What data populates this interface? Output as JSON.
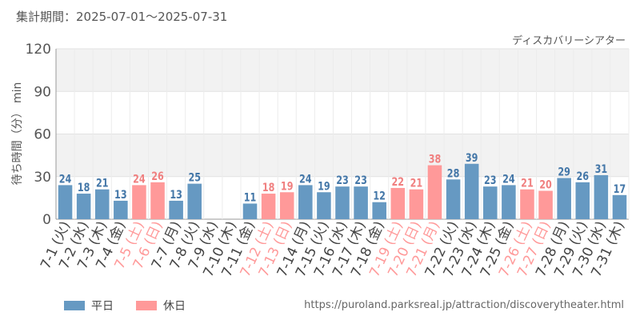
{
  "header": {
    "period_label": "集計期間：2025-07-01～2025-07-31",
    "attraction_name": "ディスカバリーシアター"
  },
  "footer": {
    "source_url": "https://puroland.parksreal.jp/attraction/discoverytheater.html"
  },
  "colors": {
    "weekday": "#6699c2",
    "holiday": "#ff9999",
    "weekday_text": "#4477a8",
    "holiday_text": "#f08080",
    "band": "#f2f2f2"
  },
  "chart_data": {
    "type": "bar",
    "ylabel": "待ち時間（分） min",
    "ylim": [
      0,
      120
    ],
    "yticks": [
      0,
      30,
      60,
      90,
      120
    ],
    "grid": true,
    "legend_position": "bottom-left",
    "categories": [
      "7-1 (火)",
      "7-2 (水)",
      "7-3 (木)",
      "7-4 (金)",
      "7-5 (土)",
      "7-6 (日)",
      "7-7 (月)",
      "7-8 (火)",
      "7-9 (水)",
      "7-10 (木)",
      "7-11 (金)",
      "7-12 (土)",
      "7-13 (日)",
      "7-14 (月)",
      "7-15 (火)",
      "7-16 (水)",
      "7-17 (木)",
      "7-18 (金)",
      "7-19 (土)",
      "7-20 (日)",
      "7-21 (月)",
      "7-22 (火)",
      "7-23 (水)",
      "7-24 (木)",
      "7-25 (金)",
      "7-26 (土)",
      "7-27 (日)",
      "7-28 (月)",
      "7-29 (火)",
      "7-30 (水)",
      "7-31 (木)"
    ],
    "values": [
      24,
      18,
      21,
      13,
      24,
      26,
      13,
      25,
      null,
      null,
      11,
      18,
      19,
      24,
      19,
      23,
      23,
      12,
      22,
      21,
      38,
      28,
      39,
      23,
      24,
      21,
      20,
      29,
      26,
      31,
      17
    ],
    "day_types": [
      "平日",
      "平日",
      "平日",
      "平日",
      "休日",
      "休日",
      "平日",
      "平日",
      "平日",
      "平日",
      "平日",
      "休日",
      "休日",
      "平日",
      "平日",
      "平日",
      "平日",
      "平日",
      "休日",
      "休日",
      "休日",
      "平日",
      "平日",
      "平日",
      "平日",
      "休日",
      "休日",
      "平日",
      "平日",
      "平日",
      "平日"
    ],
    "series": [
      {
        "name": "平日"
      },
      {
        "name": "休日"
      }
    ]
  }
}
